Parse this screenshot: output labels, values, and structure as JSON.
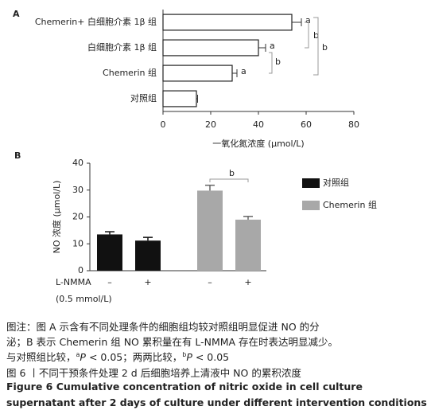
{
  "chart_data": [
    {
      "type": "bar",
      "orientation": "horizontal",
      "panel": "A",
      "categories": [
        "Chemerin+ 白细胞介素 1β 组",
        "白细胞介素 1β 组",
        "Chemerin 组",
        "对照组"
      ],
      "values": [
        54,
        40,
        29,
        14
      ],
      "errors": [
        4,
        3,
        2,
        0.5
      ],
      "color": "#ffffff",
      "bar_annotations": [
        "a",
        "a",
        "a",
        null
      ],
      "comparison_labels": [
        "b",
        "b",
        "b"
      ],
      "xlabel": "一氧化氮浓度 (μmol/L)",
      "xlim": [
        0,
        80
      ],
      "xticks": [
        0,
        20,
        40,
        60,
        80
      ]
    },
    {
      "type": "bar",
      "orientation": "vertical",
      "panel": "B",
      "categories": [
        "–",
        "+",
        "–",
        "+"
      ],
      "row_label": [
        "L-NMMA",
        "(0.5 mmol/L)"
      ],
      "series": [
        {
          "name": "对照组",
          "color": "#111111",
          "values": [
            13.5,
            11.2,
            null,
            null
          ],
          "errors": [
            1,
            1.2,
            null,
            null
          ]
        },
        {
          "name": "Chemerin 组",
          "color": "#a8a8a8",
          "values": [
            null,
            null,
            29.8,
            19
          ],
          "errors": [
            null,
            null,
            2,
            1.2
          ]
        }
      ],
      "comparison_labels": [
        "b"
      ],
      "ylabel": "NO 浓度 (μmol/L)",
      "ylim": [
        0,
        40
      ],
      "yticks": [
        0,
        10,
        20,
        30,
        40
      ]
    }
  ],
  "caption": {
    "lines": [
      "图注：图 A 示含有不同处理条件的细胞组均较对照组明显促进 NO 的分",
      "泌；B 表示 Chemerin 组 NO 累积量在有 L-NMMA 存在时表达明显减少。"
    ],
    "stats": [
      "与对照组比较，",
      "a",
      "P",
      " < 0.05；两两比较，",
      "b",
      "P",
      " < 0.05"
    ],
    "figure": "图 6 丨不同干预条件处理 2 d 后细胞培养上清液中 NO 的累积浓度",
    "english": [
      "Figure 6   Cumulative concentration of nitric oxide in cell culture",
      "supernatant after 2 days of culture under different intervention conditions"
    ]
  }
}
